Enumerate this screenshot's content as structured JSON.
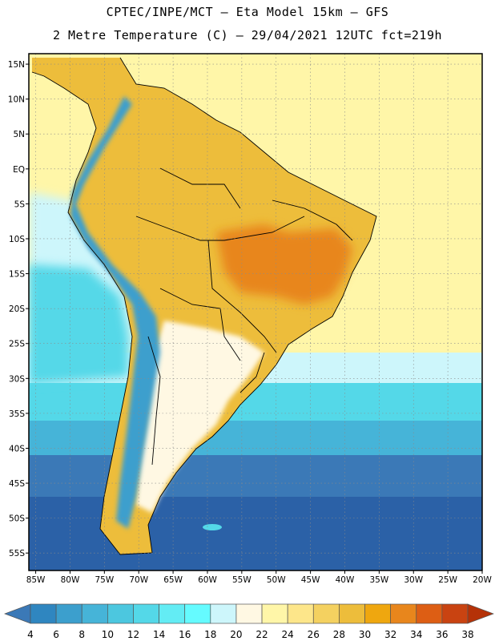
{
  "title": {
    "line1": "CPTEC/INPE/MCT –  Eta Model 15km – GFS",
    "line2": "2 Metre Temperature (C) – 29/04/2021 12UTC fct=219h"
  },
  "axes": {
    "lon_range": [
      -86,
      -20
    ],
    "lat_range": [
      -57.5,
      16.5
    ],
    "lon_ticks": [
      {
        "value": -85,
        "label": "85W"
      },
      {
        "value": -80,
        "label": "80W"
      },
      {
        "value": -75,
        "label": "75W"
      },
      {
        "value": -70,
        "label": "70W"
      },
      {
        "value": -65,
        "label": "65W"
      },
      {
        "value": -60,
        "label": "60W"
      },
      {
        "value": -55,
        "label": "55W"
      },
      {
        "value": -50,
        "label": "50W"
      },
      {
        "value": -45,
        "label": "45W"
      },
      {
        "value": -40,
        "label": "40W"
      },
      {
        "value": -35,
        "label": "35W"
      },
      {
        "value": -30,
        "label": "30W"
      },
      {
        "value": -25,
        "label": "25W"
      },
      {
        "value": -20,
        "label": "20W"
      }
    ],
    "lat_ticks": [
      {
        "value": 15,
        "label": "15N"
      },
      {
        "value": 10,
        "label": "10N"
      },
      {
        "value": 5,
        "label": "5N"
      },
      {
        "value": 0,
        "label": "EQ"
      },
      {
        "value": -5,
        "label": "5S"
      },
      {
        "value": -10,
        "label": "10S"
      },
      {
        "value": -15,
        "label": "15S"
      },
      {
        "value": -20,
        "label": "20S"
      },
      {
        "value": -25,
        "label": "25S"
      },
      {
        "value": -30,
        "label": "30S"
      },
      {
        "value": -35,
        "label": "35S"
      },
      {
        "value": -40,
        "label": "40S"
      },
      {
        "value": -45,
        "label": "45S"
      },
      {
        "value": -50,
        "label": "50S"
      },
      {
        "value": -55,
        "label": "55S"
      }
    ],
    "grid": "dotted"
  },
  "colorbar": {
    "levels": [
      "4",
      "6",
      "8",
      "10",
      "12",
      "14",
      "16",
      "18",
      "20",
      "22",
      "24",
      "26",
      "28",
      "30",
      "32",
      "34",
      "36",
      "38"
    ],
    "colors": [
      "#3b79b7",
      "#2f86c0",
      "#3c9fcd",
      "#46b4d8",
      "#4cc7df",
      "#54d8e8",
      "#63ecf4",
      "#65fbff",
      "#cdf6fb",
      "#fff8e3",
      "#fff6a8",
      "#fde68a",
      "#f4d160",
      "#edbd3b",
      "#efa70f",
      "#e8861c",
      "#dd5e14",
      "#c94311",
      "#b53208"
    ],
    "placement": "bottom"
  },
  "field_colors": {
    "ocean_cold": "#2b61a7",
    "ocean_cool": "#3b79b7",
    "ocean_mild": "#46b4d8",
    "ocean_cyan": "#54d8e8",
    "ocean_light": "#cdf6fb",
    "warm_sea": "#fff6a8",
    "land_warm": "#edbd3b",
    "land_hot": "#e8861c",
    "andes": "#3c9fcd"
  }
}
